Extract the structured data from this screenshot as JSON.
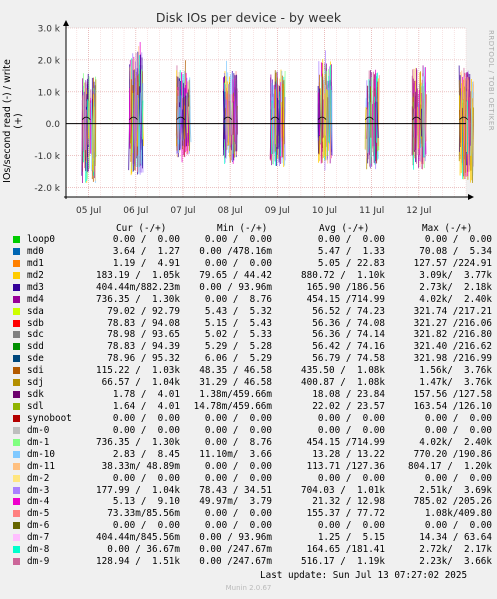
{
  "watermark": "RRDTOOL / TOBI OETIKER",
  "footer": "Munin 2.0.67",
  "last_update": "Last update: Sun Jul 13 07:27:02 2025",
  "legend_header": {
    "cur": "Cur (-/+)",
    "min": "Min (-/+)",
    "avg": "Avg (-/+)",
    "max": "Max (-/+)"
  },
  "chart_data": {
    "type": "line",
    "title": "Disk IOs per device - by week",
    "ylabel": "IOs/second read (-) / write (+)",
    "xlabel": "",
    "ylim": [
      -2300,
      3000
    ],
    "y_ticks": [
      "3.0 k",
      "2.0 k",
      "1.0 k",
      "0.0",
      "-1.0 k",
      "-2.0 k"
    ],
    "y_tick_values": [
      3000,
      2000,
      1000,
      0,
      -1000,
      -2000
    ],
    "x_ticks": [
      "05 Jul",
      "06 Jul",
      "07 Jul",
      "08 Jul",
      "09 Jul",
      "10 Jul",
      "11 Jul",
      "12 Jul"
    ],
    "x_tick_days": [
      0,
      1,
      2,
      3,
      4,
      5,
      6,
      7
    ],
    "x_range_days": [
      -0.48,
      8.0
    ],
    "grid": true,
    "spike_days": [
      -0.05,
      0.95,
      1.95,
      2.95,
      3.95,
      4.95,
      5.95,
      6.95,
      7.95
    ],
    "spike_max_write": [
      1900,
      2700,
      2000,
      2000,
      2000,
      2400,
      2000,
      2100,
      2000
    ],
    "spike_max_read": [
      -2200,
      -1900,
      -1300,
      -1500,
      -1600,
      -1500,
      -1700,
      -1700,
      -2200
    ],
    "series": [
      {
        "name": "loop0",
        "color": "#00cc00",
        "cur": "0.00 /  0.00",
        "min": "0.00 /  0.00",
        "avg": "0.00 /  0.00",
        "max": "0.00 /  0.00"
      },
      {
        "name": "md0",
        "color": "#0066b3",
        "cur": "3.64 /  1.27",
        "min": "0.00 /478.16m",
        "avg": "5.47 /  1.33",
        "max": "70.08 /  5.34"
      },
      {
        "name": "md1",
        "color": "#ff8000",
        "cur": "1.19 /  4.91",
        "min": "0.00 /  0.00",
        "avg": "5.05 / 22.83",
        "max": "127.57 /224.91"
      },
      {
        "name": "md2",
        "color": "#ffcc00",
        "cur": "183.19 /  1.05k",
        "min": "79.65 / 44.42",
        "avg": "880.72 /  1.10k",
        "max": "3.09k/  3.77k"
      },
      {
        "name": "md3",
        "color": "#330099",
        "cur": "404.44m/882.23m",
        "min": "0.00 / 93.96m",
        "avg": "165.90 /186.56",
        "max": "2.73k/  2.18k"
      },
      {
        "name": "md4",
        "color": "#990099",
        "cur": "736.35 /  1.30k",
        "min": "0.00 /  8.76",
        "avg": "454.15 /714.99",
        "max": "4.02k/  2.40k"
      },
      {
        "name": "sda",
        "color": "#ccff00",
        "cur": "79.02 / 92.79",
        "min": "5.43 /  5.32",
        "avg": "56.52 / 74.23",
        "max": "321.74 /217.21"
      },
      {
        "name": "sdb",
        "color": "#ff0000",
        "cur": "78.83 / 94.08",
        "min": "5.15 /  5.43",
        "avg": "56.36 / 74.08",
        "max": "321.27 /216.06"
      },
      {
        "name": "sdc",
        "color": "#808080",
        "cur": "78.98 / 93.65",
        "min": "5.02 /  5.33",
        "avg": "56.36 / 74.14",
        "max": "321.82 /216.80"
      },
      {
        "name": "sdd",
        "color": "#008f00",
        "cur": "78.83 / 94.39",
        "min": "5.29 /  5.28",
        "avg": "56.42 / 74.16",
        "max": "321.40 /216.62"
      },
      {
        "name": "sde",
        "color": "#00487d",
        "cur": "78.96 / 95.32",
        "min": "6.06 /  5.29",
        "avg": "56.79 / 74.58",
        "max": "321.98 /216.99"
      },
      {
        "name": "sdi",
        "color": "#b35a00",
        "cur": "115.22 /  1.03k",
        "min": "48.35 / 46.58",
        "avg": "435.50 /  1.08k",
        "max": "1.56k/  3.76k"
      },
      {
        "name": "sdj",
        "color": "#b38f00",
        "cur": "66.57 /  1.04k",
        "min": "31.29 / 46.58",
        "avg": "400.87 /  1.08k",
        "max": "1.47k/  3.76k"
      },
      {
        "name": "sdk",
        "color": "#6b006b",
        "cur": "1.78 /  4.01",
        "min": "1.38m/459.66m",
        "avg": "18.08 / 23.84",
        "max": "157.56 /127.58"
      },
      {
        "name": "sdl",
        "color": "#8fb300",
        "cur": "1.64 /  4.01",
        "min": "14.78m/459.66m",
        "avg": "22.02 / 23.57",
        "max": "163.54 /126.10"
      },
      {
        "name": "synoboot",
        "color": "#b30000",
        "cur": "0.00 /  0.00",
        "min": "0.00 /  0.00",
        "avg": "0.00 /  0.00",
        "max": "0.00 /  0.00"
      },
      {
        "name": "dm-0",
        "color": "#bebebe",
        "cur": "0.00 /  0.00",
        "min": "0.00 /  0.00",
        "avg": "0.00 /  0.00",
        "max": "0.00 /  0.00"
      },
      {
        "name": "dm-1",
        "color": "#80ff80",
        "cur": "736.35 /  1.30k",
        "min": "0.00 /  8.76",
        "avg": "454.15 /714.99",
        "max": "4.02k/  2.40k"
      },
      {
        "name": "dm-10",
        "color": "#80c9ff",
        "cur": "2.83 /  8.45",
        "min": "11.10m/  3.66",
        "avg": "13.28 / 13.22",
        "max": "770.20 /190.86"
      },
      {
        "name": "dm-11",
        "color": "#ffc080",
        "cur": "38.33m/ 48.89m",
        "min": "0.00 /  0.00",
        "avg": "113.71 /127.36",
        "max": "804.17 /  1.20k"
      },
      {
        "name": "dm-2",
        "color": "#ffe680",
        "cur": "0.00 /  0.00",
        "min": "0.00 /  0.00",
        "avg": "0.00 /  0.00",
        "max": "0.00 /  0.00"
      },
      {
        "name": "dm-3",
        "color": "#aa80ff",
        "cur": "177.99 /  1.04k",
        "min": "78.43 / 34.51",
        "avg": "704.03 /  1.01k",
        "max": "2.51k/  3.69k"
      },
      {
        "name": "dm-4",
        "color": "#ee00cc",
        "cur": "5.13 /  9.10",
        "min": "49.97m/  3.79",
        "avg": "21.32 / 12.98",
        "max": "785.02 /205.26"
      },
      {
        "name": "dm-5",
        "color": "#ff8080",
        "cur": "73.33m/85.56m",
        "min": "0.00 /  0.00",
        "avg": "155.37 / 77.72",
        "max": "1.08k/409.80"
      },
      {
        "name": "dm-6",
        "color": "#666600",
        "cur": "0.00 /  0.00",
        "min": "0.00 /  0.00",
        "avg": "0.00 /  0.00",
        "max": "0.00 /  0.00"
      },
      {
        "name": "dm-7",
        "color": "#ffbfff",
        "cur": "404.44m/845.56m",
        "min": "0.00 / 93.96m",
        "avg": "1.25 /  5.15",
        "max": "14.34 / 63.64"
      },
      {
        "name": "dm-8",
        "color": "#00ffcc",
        "cur": "0.00 / 36.67m",
        "min": "0.00 /247.67m",
        "avg": "164.65 /181.41",
        "max": "2.72k/  2.17k"
      },
      {
        "name": "dm-9",
        "color": "#cc6699",
        "cur": "128.94 /  1.51k",
        "min": "0.00 /247.67m",
        "avg": "516.17 /  1.19k",
        "max": "2.23k/  3.66k"
      }
    ]
  }
}
